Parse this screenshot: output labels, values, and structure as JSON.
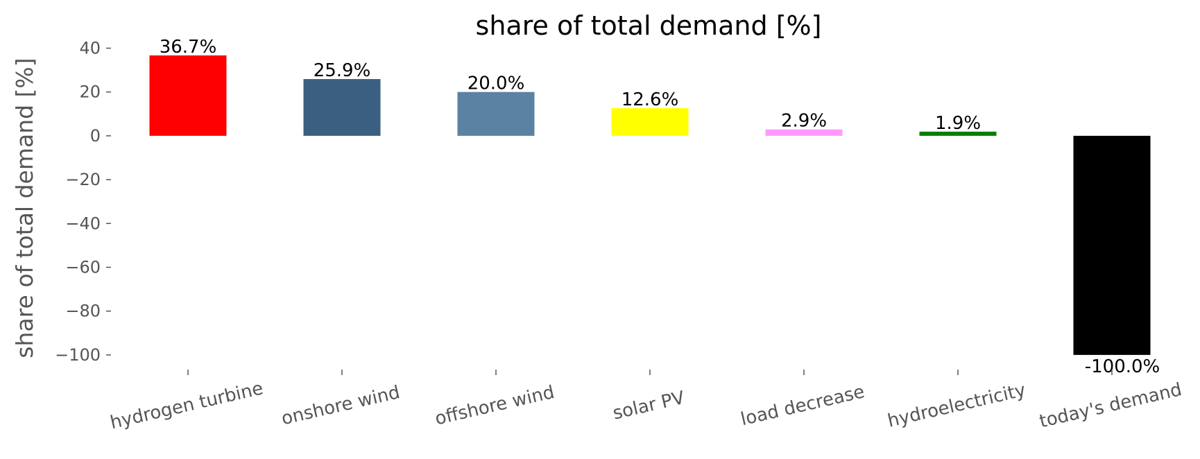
{
  "chart_data": {
    "type": "bar",
    "title": "share of total demand [%]",
    "xlabel": "",
    "ylabel": "share of total demand [%]",
    "ylim": [
      -107,
      43
    ],
    "yticks": [
      40,
      20,
      0,
      -20,
      -40,
      -60,
      -80,
      -100
    ],
    "ytick_labels": [
      "40",
      "20",
      "0",
      "−20",
      "−40",
      "−60",
      "−80",
      "−100"
    ],
    "grid": false,
    "categories": [
      "hydrogen turbine",
      "onshore wind",
      "offshore wind",
      "solar PV",
      "load decrease",
      "hydroelectricity",
      "today's demand"
    ],
    "values": [
      36.7,
      25.9,
      20.0,
      12.6,
      2.9,
      1.9,
      -100.0
    ],
    "value_labels": [
      "36.7%",
      "25.9%",
      "20.0%",
      "12.6%",
      "2.9%",
      "1.9%",
      "-100.0%"
    ],
    "colors": [
      "#ff0000",
      "#3b5f80",
      "#5b82a2",
      "#ffff00",
      "#ff99ff",
      "#008000",
      "#000000"
    ]
  }
}
